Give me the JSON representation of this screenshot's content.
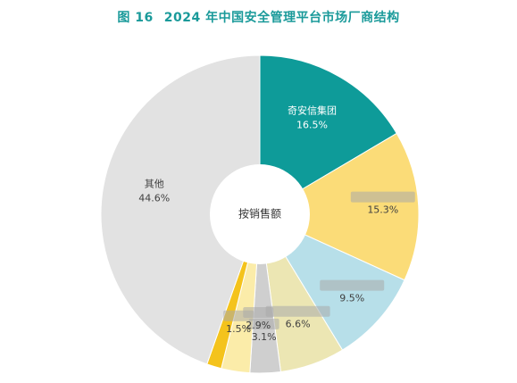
{
  "figure": {
    "number_label": "图 16",
    "title": "2024 年中国安全管理平台市场厂商结构"
  },
  "colors": {
    "title": "#1a9a9a",
    "slice_1": "#0e9b99",
    "slice_2": "#fbdc78",
    "slice_3": "#b7dfe9",
    "slice_4": "#ece6b3",
    "slice_5": "#cfcfcf",
    "slice_6": "#fbeca9",
    "slice_7": "#f4c31c",
    "slice_other": "#e2e2e2"
  },
  "chart_data": {
    "type": "pie",
    "variant": "donut",
    "center_label": "按销售额",
    "start_angle_deg": 0,
    "direction": "clockwise",
    "slices": [
      {
        "name": "奇安信集团",
        "value": 16.5,
        "label": "16.5%",
        "name_hidden": false
      },
      {
        "name": "",
        "value": 15.3,
        "label": "15.3%",
        "name_hidden": true
      },
      {
        "name": "",
        "value": 9.5,
        "label": "9.5%",
        "name_hidden": true
      },
      {
        "name": "",
        "value": 6.6,
        "label": "6.6%",
        "name_hidden": true
      },
      {
        "name": "",
        "value": 3.1,
        "label": "3.1%",
        "name_hidden": true
      },
      {
        "name": "",
        "value": 2.9,
        "label": "2.9%",
        "name_hidden": true
      },
      {
        "name": "",
        "value": 1.5,
        "label": "1.5%",
        "name_hidden": true
      },
      {
        "name": "其他",
        "value": 44.6,
        "label": "44.6%",
        "name_hidden": false
      }
    ]
  }
}
